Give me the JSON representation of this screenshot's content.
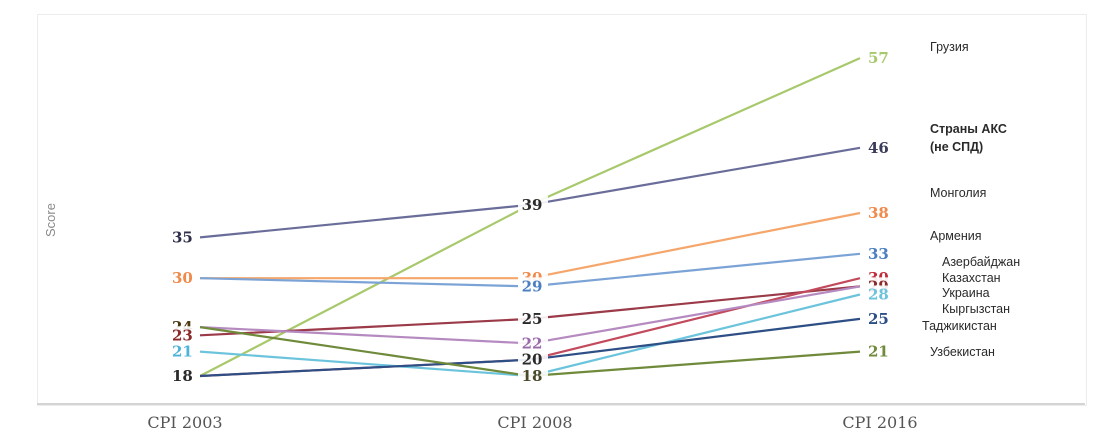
{
  "chart_data": {
    "type": "line",
    "ylabel": "Score",
    "categories": [
      "CPI 2003",
      "CPI 2008",
      "CPI 2016"
    ],
    "series": [
      {
        "name": "Грузия",
        "values": [
          18,
          39,
          57
        ],
        "color": "#a7c96b"
      },
      {
        "name": "Страны АКС (не СПД)",
        "values": [
          35,
          39,
          46
        ],
        "color": "#6a6d99"
      },
      {
        "name": "Монголия",
        "values": [
          30,
          30,
          38
        ],
        "color": "#f5a66b"
      },
      {
        "name": "Армения",
        "values": [
          30,
          29,
          33
        ],
        "color": "#7ba3d6"
      },
      {
        "name": "Азербайджан",
        "values": [
          23,
          25,
          29
        ],
        "color": "#9b3a48"
      },
      {
        "name": "Казахстан",
        "values": [
          18,
          20,
          30
        ],
        "color": "#c24a5c"
      },
      {
        "name": "Украина",
        "values": [
          24,
          22,
          29
        ],
        "color": "#b58ac0"
      },
      {
        "name": "Кыргызстан",
        "values": [
          21,
          18,
          28
        ],
        "color": "#6cc4dc"
      },
      {
        "name": "Таджикистан",
        "values": [
          18,
          20,
          25
        ],
        "color": "#2d4f86"
      },
      {
        "name": "Узбекистан",
        "values": [
          24,
          18,
          21
        ],
        "color": "#6f8a3a"
      }
    ],
    "labels_2003": [
      {
        "text": "35",
        "value": 35,
        "color": "#2f2f4a"
      },
      {
        "text": "30",
        "value": 30,
        "color": "#f08a4b"
      },
      {
        "text": "24",
        "value": 24,
        "color": "#4a3a10"
      },
      {
        "text": "23",
        "value": 23,
        "color": "#8a2a2a"
      },
      {
        "text": "21",
        "value": 21,
        "color": "#4fb3d9"
      },
      {
        "text": "18",
        "value": 18,
        "color": "#2a2a2a"
      }
    ],
    "labels_2008": [
      {
        "text": "39",
        "value": 39,
        "color": "#2a2a2a"
      },
      {
        "text": "30",
        "value": 30,
        "color": "#f08a4b"
      },
      {
        "text": "29",
        "value": 29,
        "color": "#4a7fc1"
      },
      {
        "text": "25",
        "value": 25,
        "color": "#2a2a2a"
      },
      {
        "text": "22",
        "value": 22,
        "color": "#9b6aad"
      },
      {
        "text": "20",
        "value": 20,
        "color": "#2a2a2a"
      },
      {
        "text": "18",
        "value": 18,
        "color": "#4a4a2a"
      }
    ],
    "labels_2016": [
      {
        "text": "57",
        "value": 57,
        "color": "#a7c96b"
      },
      {
        "text": "46",
        "value": 46,
        "color": "#3a3a5a"
      },
      {
        "text": "38",
        "value": 38,
        "color": "#f08a4b"
      },
      {
        "text": "33",
        "value": 33,
        "color": "#4a7fc1"
      },
      {
        "text": "30",
        "value": 30,
        "color": "#c22a3a"
      },
      {
        "text": "29",
        "value": 29,
        "color": "#8a2a2a"
      },
      {
        "text": "28",
        "value": 28,
        "color": "#6cc4dc"
      },
      {
        "text": "25",
        "value": 25,
        "color": "#2d4f86"
      },
      {
        "text": "21",
        "value": 21,
        "color": "#6f8a3a"
      }
    ],
    "legend_labels": [
      {
        "text": "Грузия",
        "bold": false
      },
      {
        "text": "Страны АКС",
        "bold": true
      },
      {
        "text": "(не СПД)",
        "bold": true
      },
      {
        "text": "Монголия",
        "bold": false
      },
      {
        "text": "Армения",
        "bold": false
      },
      {
        "text": "Азербайджан",
        "bold": false
      },
      {
        "text": "Казахстан",
        "bold": false
      },
      {
        "text": "Украина",
        "bold": false
      },
      {
        "text": "Кыргызстан",
        "bold": false
      },
      {
        "text": "Таджикистан",
        "bold": false
      },
      {
        "text": "Узбекистан",
        "bold": false
      }
    ]
  }
}
